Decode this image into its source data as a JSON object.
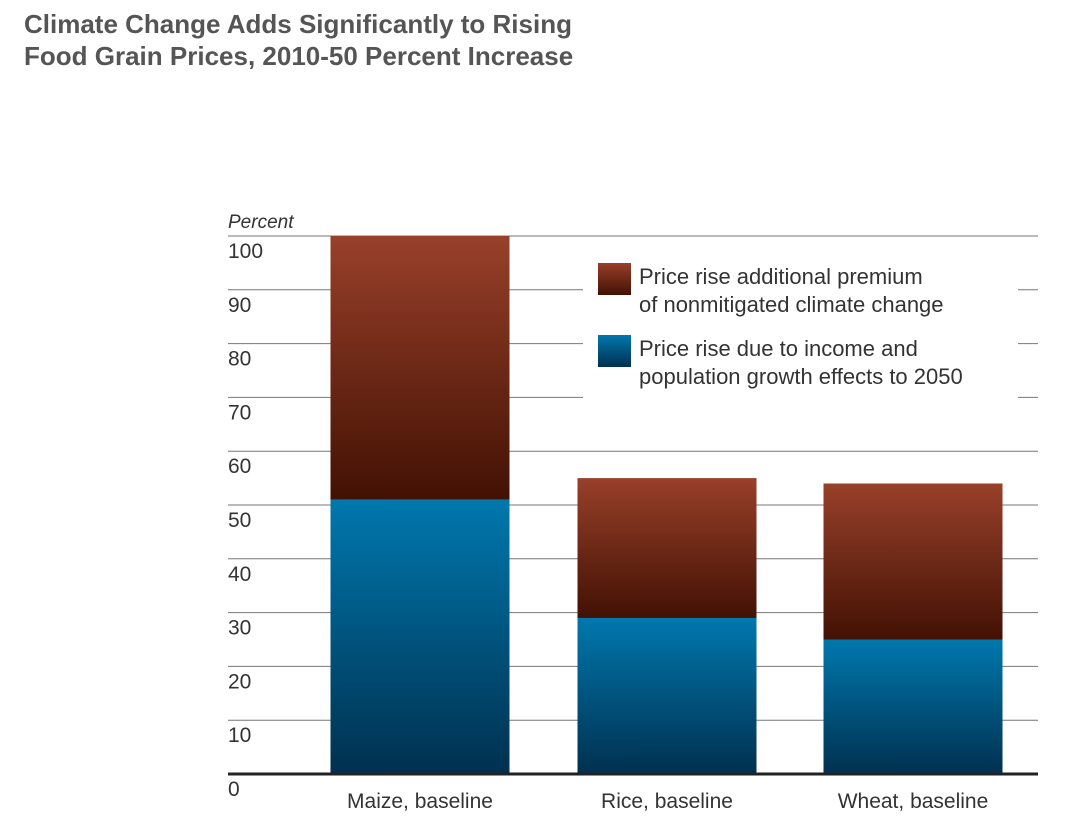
{
  "chart_data": {
    "type": "bar",
    "stacked": true,
    "title_lines": [
      "Climate Change Adds Significantly to Rising",
      "Food Grain Prices, 2010-50 Percent Increase"
    ],
    "ylabel": "Percent",
    "xlabel": "",
    "ylim": [
      0,
      100
    ],
    "yticks": [
      0,
      10,
      20,
      30,
      40,
      50,
      60,
      70,
      80,
      90,
      100
    ],
    "grid": true,
    "categories": [
      "Maize, baseline",
      "Rice, baseline",
      "Wheat, baseline"
    ],
    "series": [
      {
        "name": "Price rise due to income and population growth effects to 2050",
        "legend_lines": [
          "Price rise due to income and",
          "population growth effects to 2050"
        ],
        "color_top": "#0078ad",
        "color_bottom": "#00304f",
        "values": [
          51,
          29,
          25
        ]
      },
      {
        "name": "Price rise additional premium of nonmitigated climate change",
        "legend_lines": [
          "Price rise additional premium",
          "of nonmitigated climate change"
        ],
        "color_top": "#98402a",
        "color_bottom": "#421103",
        "values": [
          49,
          26,
          29
        ]
      }
    ],
    "legend_position": "top-right"
  }
}
